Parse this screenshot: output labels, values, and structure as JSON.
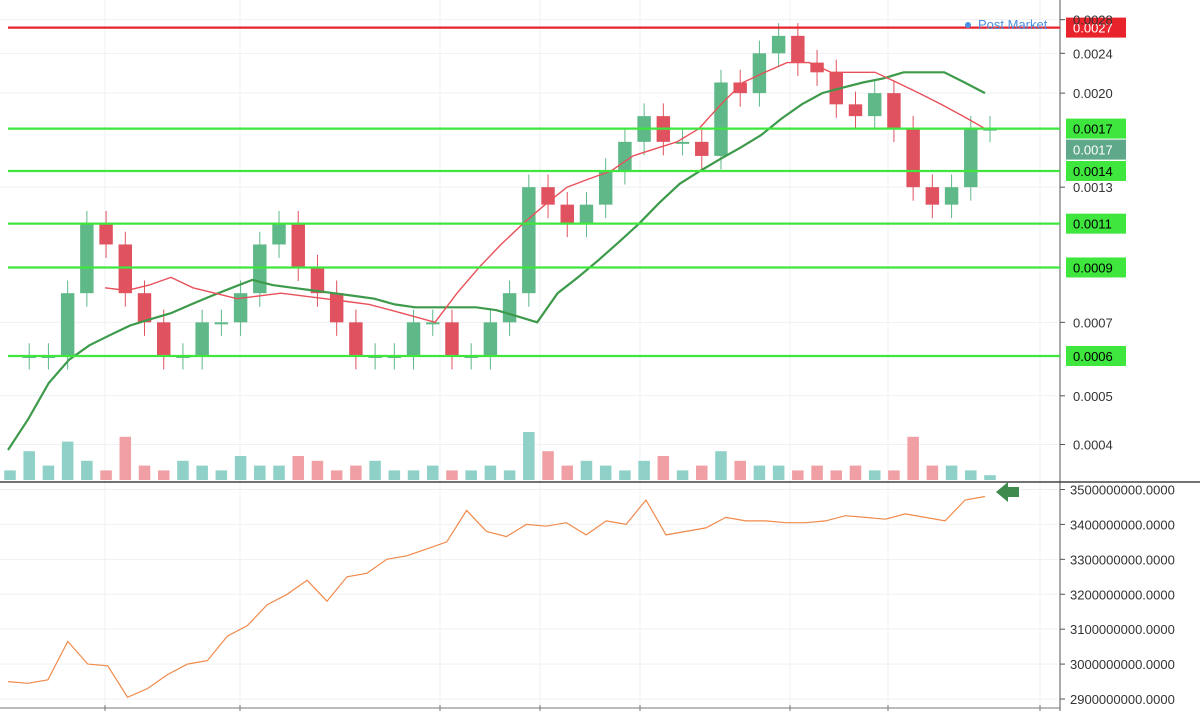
{
  "post_market_label": "Post Market",
  "colors": {
    "up": "#5fb888",
    "down": "#e0525f",
    "hline_green": "#3ee63e",
    "hline_red": "#e8232b",
    "ma_fast": "#e8515a",
    "ma_slow": "#3d9a4a",
    "ma_thin": "#7fcf95",
    "indicator_line": "#f08a4b",
    "vol_up": "#8fd0c8",
    "vol_down": "#f0a0a4",
    "price_box": "#5fa88a",
    "arrow": "#3f8a4d"
  },
  "chart_data": [
    {
      "type": "candlestick",
      "title": "",
      "y_axis_side": "right",
      "y_scale": "log",
      "ylim": [
        0.00034,
        0.0029
      ],
      "y_ticks": [
        "0.0028",
        "0.0024",
        "0.0020",
        "0.0013",
        "0.0007",
        "0.0005",
        "0.0004"
      ],
      "price_lines": [
        {
          "value": 0.0027,
          "label": "0.0027",
          "color": "red"
        },
        {
          "value": 0.0017,
          "label": "0.0017",
          "color": "green"
        },
        {
          "value": 0.0014,
          "label": "0.0014",
          "color": "green"
        },
        {
          "value": 0.0011,
          "label": "0.0011",
          "color": "green"
        },
        {
          "value": 0.0009,
          "label": "0.0009",
          "color": "green"
        },
        {
          "value": 0.0006,
          "label": "0.0006",
          "color": "green"
        }
      ],
      "last_price": {
        "value": 0.0017,
        "label": "0.0017"
      },
      "price_series": [
        0.0006,
        0.0006,
        0.0006,
        0.0008,
        0.0011,
        0.001,
        0.0008,
        0.0007,
        0.0006,
        0.0006,
        0.0007,
        0.0007,
        0.0008,
        0.001,
        0.0011,
        0.0009,
        0.0008,
        0.0007,
        0.0006,
        0.0006,
        0.0006,
        0.0007,
        0.0007,
        0.0006,
        0.0006,
        0.0007,
        0.0008,
        0.0013,
        0.0012,
        0.0011,
        0.0012,
        0.0014,
        0.0016,
        0.0018,
        0.0016,
        0.0016,
        0.0015,
        0.0021,
        0.002,
        0.0024,
        0.0026,
        0.0023,
        0.0022,
        0.0019,
        0.0018,
        0.002,
        0.0017,
        0.0013,
        0.0012,
        0.0013,
        0.0017,
        0.0017
      ],
      "ma_slow": [
        0.00039,
        0.00045,
        0.00053,
        0.00059,
        0.00063,
        0.00066,
        0.00069,
        0.00071,
        0.00073,
        0.00076,
        0.00079,
        0.00082,
        0.00085,
        0.00083,
        0.00082,
        0.00081,
        0.0008,
        0.00079,
        0.00078,
        0.00076,
        0.00075,
        0.00075,
        0.00075,
        0.00075,
        0.00074,
        0.00072,
        0.0007,
        0.0008,
        0.00086,
        0.00093,
        0.00101,
        0.0011,
        0.00121,
        0.00132,
        0.0014,
        0.00148,
        0.00156,
        0.00165,
        0.00178,
        0.0019,
        0.002,
        0.00205,
        0.0021,
        0.00214,
        0.0022,
        0.0022,
        0.0022,
        0.0021,
        0.002
      ],
      "ma_fast": [
        0.00082,
        0.00081,
        0.00083,
        0.00086,
        0.00082,
        0.0008,
        0.00078,
        0.00079,
        0.0008,
        0.00079,
        0.00078,
        0.00077,
        0.00076,
        0.00074,
        0.00072,
        0.0007,
        0.0008,
        0.0009,
        0.001,
        0.0011,
        0.0012,
        0.0013,
        0.00135,
        0.0014,
        0.0015,
        0.00155,
        0.0016,
        0.0017,
        0.0019,
        0.0021,
        0.0022,
        0.0023,
        0.0023,
        0.0022,
        0.0022,
        0.0022,
        0.0021,
        0.002,
        0.0019,
        0.0018,
        0.0017
      ],
      "volume_relative": [
        0.2,
        0.6,
        0.3,
        0.8,
        0.4,
        0.2,
        0.9,
        0.3,
        0.2,
        0.4,
        0.3,
        0.2,
        0.5,
        0.3,
        0.3,
        0.5,
        0.4,
        0.2,
        0.3,
        0.4,
        0.2,
        0.2,
        0.3,
        0.2,
        0.2,
        0.3,
        0.2,
        1.0,
        0.6,
        0.3,
        0.4,
        0.3,
        0.2,
        0.4,
        0.5,
        0.2,
        0.3,
        0.6,
        0.4,
        0.3,
        0.3,
        0.2,
        0.3,
        0.2,
        0.3,
        0.2,
        0.2,
        0.9,
        0.3,
        0.3,
        0.2,
        0.1
      ]
    },
    {
      "type": "line",
      "title": "",
      "y_axis_side": "right",
      "ylim": [
        2880000000,
        3510000000
      ],
      "y_ticks": [
        "3500000000.0000",
        "3400000000.0000",
        "3300000000.0000",
        "3200000000.0000",
        "3100000000.0000",
        "3000000000.0000",
        "2900000000.0000"
      ],
      "values": [
        2950000000,
        2945000000,
        2955000000,
        3065000000,
        3000000000,
        2995000000,
        2905000000,
        2930000000,
        2970000000,
        3000000000,
        3010000000,
        3080000000,
        3110000000,
        3170000000,
        3200000000,
        3240000000,
        3180000000,
        3250000000,
        3260000000,
        3300000000,
        3310000000,
        3330000000,
        3350000000,
        3440000000,
        3380000000,
        3365000000,
        3400000000,
        3395000000,
        3405000000,
        3370000000,
        3410000000,
        3400000000,
        3470000000,
        3370000000,
        3380000000,
        3390000000,
        3420000000,
        3410000000,
        3410000000,
        3405000000,
        3405000000,
        3410000000,
        3425000000,
        3420000000,
        3415000000,
        3430000000,
        3420000000,
        3410000000,
        3470000000,
        3480000000
      ]
    }
  ]
}
